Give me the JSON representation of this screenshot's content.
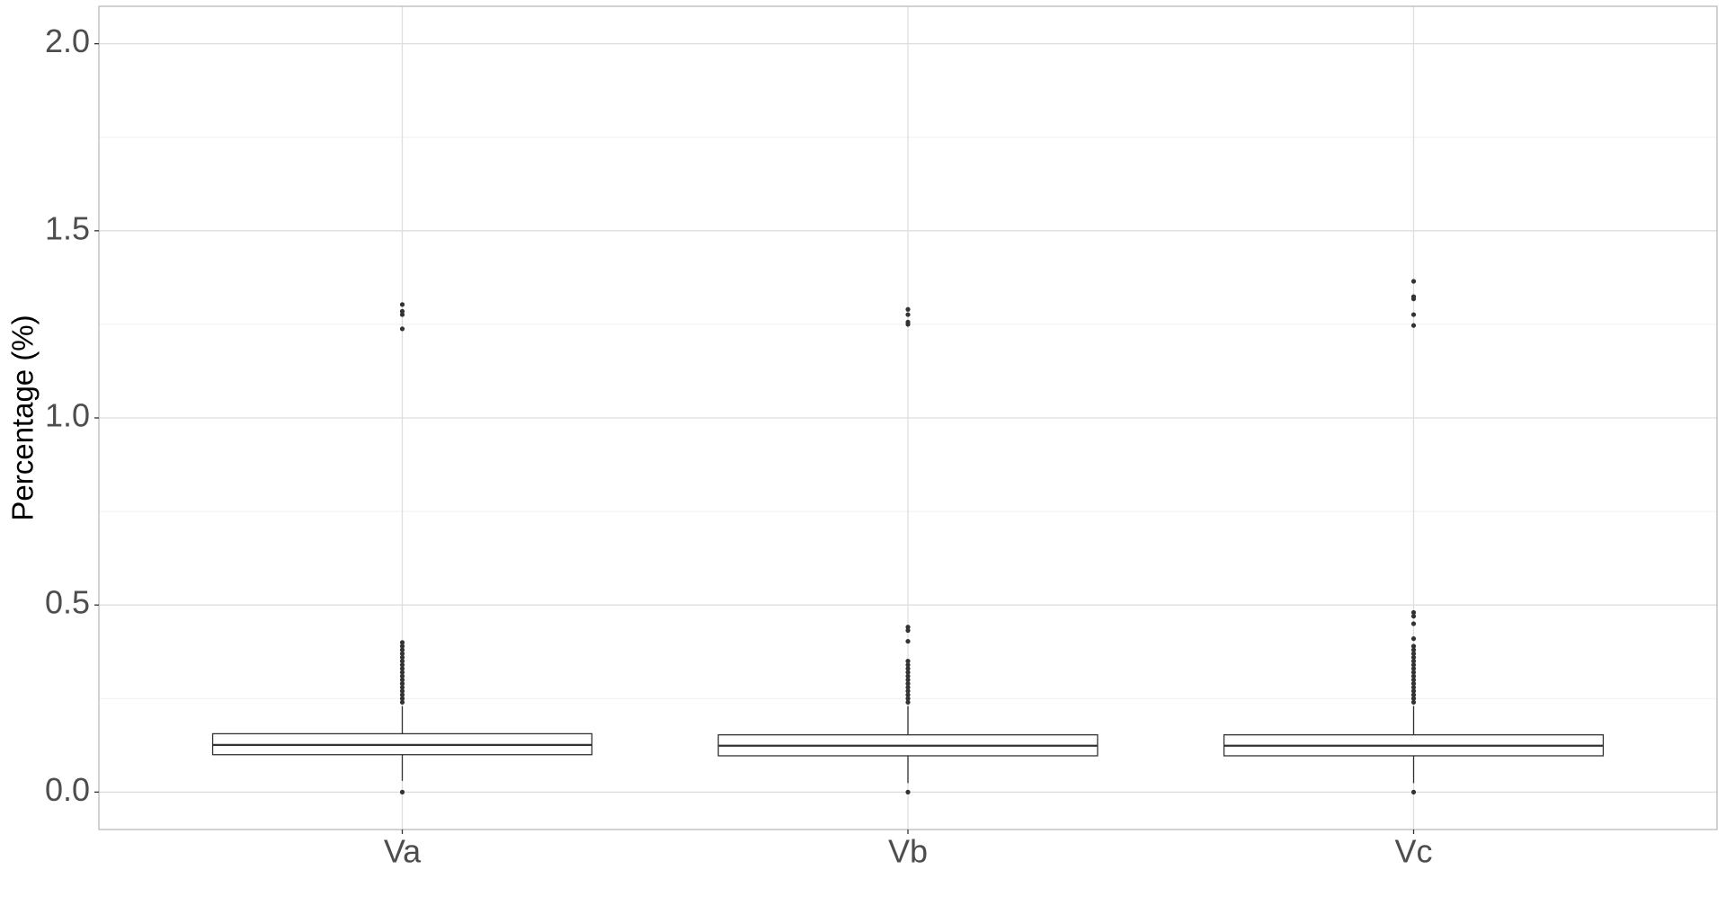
{
  "chart_data": {
    "type": "box",
    "y_label": "Percentage (%)",
    "categories": [
      "Va",
      "Vb",
      "Vc"
    ],
    "boxes": [
      {
        "whisker_low": 0.03,
        "q1": 0.1,
        "median": 0.126,
        "q3": 0.156,
        "whisker_high": 0.23,
        "outliers": [
          0,
          0.24,
          0.25,
          0.26,
          0.27,
          0.28,
          0.29,
          0.3,
          0.31,
          0.32,
          0.33,
          0.34,
          0.35,
          0.36,
          0.37,
          0.38,
          0.39,
          0.4,
          1.238,
          1.276,
          1.285,
          1.303
        ]
      },
      {
        "whisker_low": 0.024,
        "q1": 0.097,
        "median": 0.124,
        "q3": 0.153,
        "whisker_high": 0.23,
        "outliers": [
          0,
          0.24,
          0.25,
          0.26,
          0.27,
          0.28,
          0.29,
          0.3,
          0.31,
          0.32,
          0.33,
          0.34,
          0.35,
          0.403,
          0.432,
          0.441,
          1.25,
          1.256,
          1.276,
          1.29
        ]
      },
      {
        "whisker_low": 0.024,
        "q1": 0.097,
        "median": 0.124,
        "q3": 0.153,
        "whisker_high": 0.23,
        "outliers": [
          0,
          0.24,
          0.25,
          0.26,
          0.27,
          0.28,
          0.29,
          0.3,
          0.31,
          0.32,
          0.33,
          0.34,
          0.35,
          0.36,
          0.37,
          0.38,
          0.39,
          0.41,
          0.45,
          0.47,
          0.48,
          1.247,
          1.276,
          1.318,
          1.324,
          1.365
        ]
      }
    ],
    "box_fill": "#ffffff",
    "box_stroke": "#333333",
    "ylim": [
      -0.1,
      2.1
    ],
    "yticks": [
      {
        "value": 0,
        "label": "0.0"
      },
      0.5,
      {
        "value": 1,
        "label": "1.0"
      },
      1.5,
      {
        "value": 2,
        "label": "2.0"
      }
    ],
    "grid": true
  }
}
